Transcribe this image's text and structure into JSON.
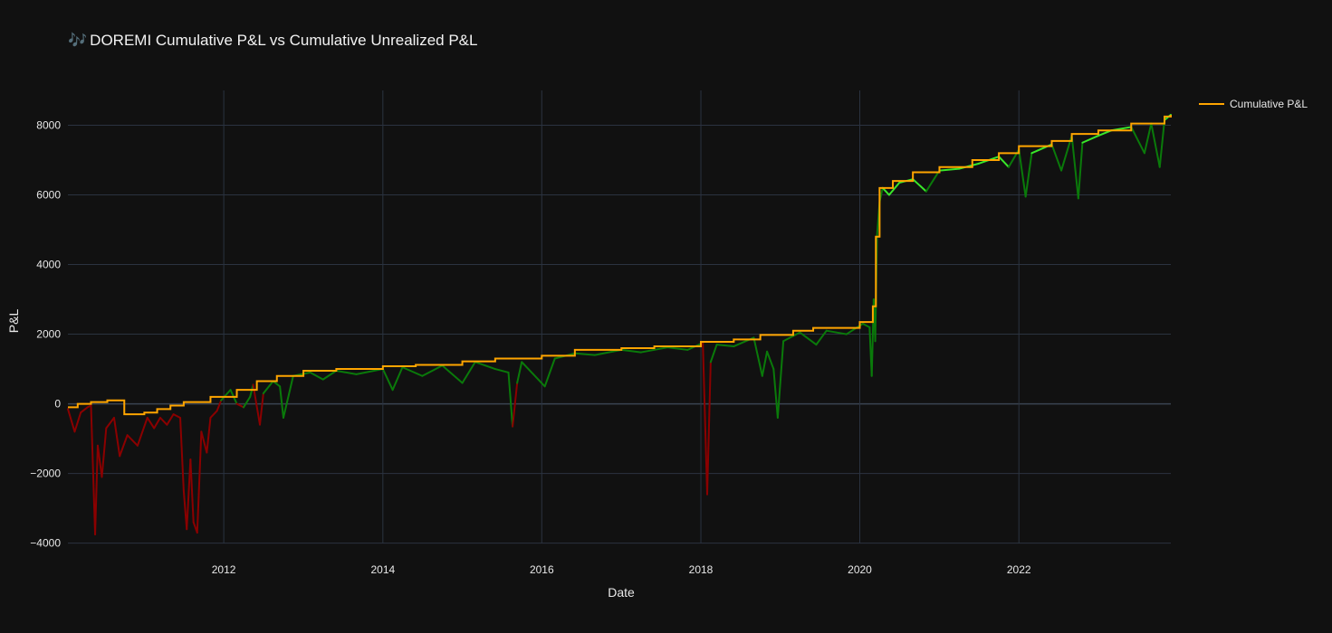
{
  "page": {
    "title_icon": "🎶",
    "title": "DOREMI Cumulative P&L vs Cumulative Unrealized P&L"
  },
  "colors": {
    "background": "#111111",
    "grid": "#2b3340",
    "zero_line": "#3a4452",
    "cumulative_line": "#ffa500",
    "unrealized_positive": "#0a7a0a",
    "unrealized_bright": "#39e82a",
    "unrealized_negative": "#8b0000"
  },
  "chart_data": {
    "type": "line",
    "title": "DOREMI Cumulative P&L vs Cumulative Unrealized P&L",
    "xlabel": "Date",
    "ylabel": "P&L",
    "xlim": [
      "2010-01-15",
      "2023-11-30"
    ],
    "ylim": [
      -4400,
      9000
    ],
    "x_ticks": [
      "2012",
      "2014",
      "2016",
      "2018",
      "2020",
      "2022"
    ],
    "y_ticks": [
      -4000,
      -2000,
      0,
      2000,
      4000,
      6000,
      8000
    ],
    "y_tick_labels": [
      "−4000",
      "−2000",
      "0",
      "2000",
      "4000",
      "6000",
      "8000"
    ],
    "grid": true,
    "legend": {
      "position": "top-right",
      "entries": [
        "Cumulative P&L"
      ]
    },
    "series": [
      {
        "name": "Cumulative P&L",
        "style": "step",
        "points": [
          [
            "2010-01-15",
            -100
          ],
          [
            "2010-03-01",
            0
          ],
          [
            "2010-05-01",
            50
          ],
          [
            "2010-07-15",
            100
          ],
          [
            "2010-10-01",
            -300
          ],
          [
            "2011-01-01",
            -250
          ],
          [
            "2011-03-01",
            -150
          ],
          [
            "2011-05-01",
            -50
          ],
          [
            "2011-07-01",
            50
          ],
          [
            "2011-11-01",
            200
          ],
          [
            "2012-03-01",
            400
          ],
          [
            "2012-06-01",
            650
          ],
          [
            "2012-09-01",
            800
          ],
          [
            "2013-01-01",
            950
          ],
          [
            "2013-06-01",
            1000
          ],
          [
            "2014-01-01",
            1080
          ],
          [
            "2014-06-01",
            1120
          ],
          [
            "2015-01-01",
            1220
          ],
          [
            "2015-06-01",
            1300
          ],
          [
            "2016-01-01",
            1380
          ],
          [
            "2016-06-01",
            1550
          ],
          [
            "2017-01-01",
            1600
          ],
          [
            "2017-06-01",
            1650
          ],
          [
            "2018-01-01",
            1780
          ],
          [
            "2018-06-01",
            1850
          ],
          [
            "2018-10-01",
            1980
          ],
          [
            "2019-03-01",
            2100
          ],
          [
            "2019-06-01",
            2180
          ],
          [
            "2020-01-01",
            2350
          ],
          [
            "2020-03-01",
            2800
          ],
          [
            "2020-03-15",
            4800
          ],
          [
            "2020-04-01",
            6200
          ],
          [
            "2020-06-01",
            6400
          ],
          [
            "2020-09-01",
            6650
          ],
          [
            "2021-01-01",
            6800
          ],
          [
            "2021-06-01",
            7000
          ],
          [
            "2021-10-01",
            7200
          ],
          [
            "2022-01-01",
            7400
          ],
          [
            "2022-06-01",
            7550
          ],
          [
            "2022-09-01",
            7750
          ],
          [
            "2023-01-01",
            7850
          ],
          [
            "2023-06-01",
            8050
          ],
          [
            "2023-11-01",
            8250
          ],
          [
            "2023-11-30",
            8300
          ]
        ]
      },
      {
        "name": "",
        "style": "line",
        "points": [
          [
            "2010-01-15",
            -150
          ],
          [
            "2010-02-15",
            -800
          ],
          [
            "2010-03-15",
            -250
          ],
          [
            "2010-04-15",
            -100
          ],
          [
            "2010-05-01",
            -50
          ],
          [
            "2010-05-20",
            -3750
          ],
          [
            "2010-06-01",
            -1200
          ],
          [
            "2010-06-20",
            -2100
          ],
          [
            "2010-07-10",
            -700
          ],
          [
            "2010-08-15",
            -400
          ],
          [
            "2010-09-10",
            -1500
          ],
          [
            "2010-10-15",
            -900
          ],
          [
            "2010-12-01",
            -1200
          ],
          [
            "2011-01-15",
            -400
          ],
          [
            "2011-02-15",
            -700
          ],
          [
            "2011-03-15",
            -400
          ],
          [
            "2011-04-15",
            -600
          ],
          [
            "2011-05-15",
            -300
          ],
          [
            "2011-06-15",
            -400
          ],
          [
            "2011-07-01",
            -2500
          ],
          [
            "2011-07-15",
            -3600
          ],
          [
            "2011-08-01",
            -1600
          ],
          [
            "2011-08-15",
            -3400
          ],
          [
            "2011-09-01",
            -3700
          ],
          [
            "2011-09-20",
            -800
          ],
          [
            "2011-10-15",
            -1400
          ],
          [
            "2011-11-01",
            -400
          ],
          [
            "2011-12-01",
            -200
          ],
          [
            "2011-12-20",
            100
          ],
          [
            "2012-02-01",
            400
          ],
          [
            "2012-03-01",
            0
          ],
          [
            "2012-04-01",
            -100
          ],
          [
            "2012-05-01",
            200
          ],
          [
            "2012-05-15",
            550
          ],
          [
            "2012-06-15",
            -600
          ],
          [
            "2012-07-01",
            300
          ],
          [
            "2012-08-15",
            650
          ],
          [
            "2012-09-15",
            500
          ],
          [
            "2012-10-01",
            -400
          ],
          [
            "2012-11-15",
            800
          ],
          [
            "2013-02-01",
            900
          ],
          [
            "2013-04-01",
            700
          ],
          [
            "2013-06-01",
            950
          ],
          [
            "2013-09-01",
            850
          ],
          [
            "2014-01-01",
            1000
          ],
          [
            "2014-02-15",
            400
          ],
          [
            "2014-04-01",
            1050
          ],
          [
            "2014-07-01",
            800
          ],
          [
            "2014-10-01",
            1100
          ],
          [
            "2015-01-01",
            600
          ],
          [
            "2015-03-01",
            1200
          ],
          [
            "2015-06-01",
            1000
          ],
          [
            "2015-08-01",
            900
          ],
          [
            "2015-08-20",
            -650
          ],
          [
            "2015-09-10",
            600
          ],
          [
            "2015-10-01",
            1200
          ],
          [
            "2016-01-15",
            500
          ],
          [
            "2016-03-01",
            1300
          ],
          [
            "2016-06-01",
            1450
          ],
          [
            "2016-09-01",
            1400
          ],
          [
            "2017-01-01",
            1550
          ],
          [
            "2017-04-01",
            1480
          ],
          [
            "2017-08-01",
            1620
          ],
          [
            "2017-11-01",
            1550
          ],
          [
            "2018-01-10",
            1750
          ],
          [
            "2018-01-30",
            -2600
          ],
          [
            "2018-02-15",
            1200
          ],
          [
            "2018-03-15",
            1700
          ],
          [
            "2018-06-01",
            1650
          ],
          [
            "2018-09-01",
            1900
          ],
          [
            "2018-10-10",
            800
          ],
          [
            "2018-11-01",
            1500
          ],
          [
            "2018-12-01",
            1000
          ],
          [
            "2018-12-20",
            -400
          ],
          [
            "2019-01-15",
            1800
          ],
          [
            "2019-04-01",
            2050
          ],
          [
            "2019-06-15",
            1700
          ],
          [
            "2019-08-01",
            2100
          ],
          [
            "2019-11-01",
            2000
          ],
          [
            "2020-01-15",
            2300
          ],
          [
            "2020-02-15",
            2200
          ],
          [
            "2020-02-25",
            800
          ],
          [
            "2020-03-05",
            3000
          ],
          [
            "2020-03-12",
            1800
          ],
          [
            "2020-03-20",
            4800
          ],
          [
            "2020-04-01",
            5800
          ],
          [
            "2020-04-15",
            6200
          ],
          [
            "2020-05-15",
            6000
          ],
          [
            "2020-07-01",
            6350
          ],
          [
            "2020-09-01",
            6450
          ],
          [
            "2020-11-01",
            6100
          ],
          [
            "2021-01-01",
            6700
          ],
          [
            "2021-04-01",
            6750
          ],
          [
            "2021-07-01",
            6900
          ],
          [
            "2021-10-01",
            7100
          ],
          [
            "2021-11-15",
            6800
          ],
          [
            "2022-01-01",
            7300
          ],
          [
            "2022-02-01",
            5950
          ],
          [
            "2022-03-01",
            7200
          ],
          [
            "2022-06-01",
            7450
          ],
          [
            "2022-07-15",
            6700
          ],
          [
            "2022-09-01",
            7700
          ],
          [
            "2022-10-01",
            5900
          ],
          [
            "2022-10-20",
            7500
          ],
          [
            "2023-01-01",
            7700
          ],
          [
            "2023-03-01",
            7850
          ],
          [
            "2023-06-01",
            7950
          ],
          [
            "2023-08-01",
            7200
          ],
          [
            "2023-09-01",
            8050
          ],
          [
            "2023-10-10",
            6800
          ],
          [
            "2023-11-01",
            8150
          ],
          [
            "2023-11-30",
            8300
          ]
        ]
      }
    ]
  }
}
